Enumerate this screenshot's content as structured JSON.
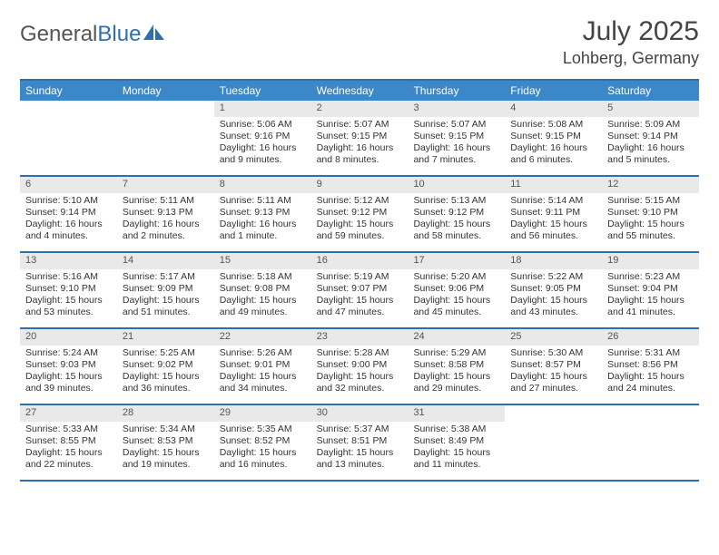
{
  "logo": {
    "text1": "General",
    "text2": "Blue"
  },
  "title": "July 2025",
  "location": "Lohberg, Germany",
  "colors": {
    "header_bg": "#3b87c8",
    "rule": "#2f6fab",
    "daynum_bg": "#e9e9e9",
    "text": "#333333",
    "title_text": "#444444"
  },
  "day_headers": [
    "Sunday",
    "Monday",
    "Tuesday",
    "Wednesday",
    "Thursday",
    "Friday",
    "Saturday"
  ],
  "weeks": [
    [
      {
        "n": "",
        "lines": [
          "",
          "",
          "",
          ""
        ]
      },
      {
        "n": "",
        "lines": [
          "",
          "",
          "",
          ""
        ]
      },
      {
        "n": "1",
        "lines": [
          "Sunrise: 5:06 AM",
          "Sunset: 9:16 PM",
          "Daylight: 16 hours",
          "and 9 minutes."
        ]
      },
      {
        "n": "2",
        "lines": [
          "Sunrise: 5:07 AM",
          "Sunset: 9:15 PM",
          "Daylight: 16 hours",
          "and 8 minutes."
        ]
      },
      {
        "n": "3",
        "lines": [
          "Sunrise: 5:07 AM",
          "Sunset: 9:15 PM",
          "Daylight: 16 hours",
          "and 7 minutes."
        ]
      },
      {
        "n": "4",
        "lines": [
          "Sunrise: 5:08 AM",
          "Sunset: 9:15 PM",
          "Daylight: 16 hours",
          "and 6 minutes."
        ]
      },
      {
        "n": "5",
        "lines": [
          "Sunrise: 5:09 AM",
          "Sunset: 9:14 PM",
          "Daylight: 16 hours",
          "and 5 minutes."
        ]
      }
    ],
    [
      {
        "n": "6",
        "lines": [
          "Sunrise: 5:10 AM",
          "Sunset: 9:14 PM",
          "Daylight: 16 hours",
          "and 4 minutes."
        ]
      },
      {
        "n": "7",
        "lines": [
          "Sunrise: 5:11 AM",
          "Sunset: 9:13 PM",
          "Daylight: 16 hours",
          "and 2 minutes."
        ]
      },
      {
        "n": "8",
        "lines": [
          "Sunrise: 5:11 AM",
          "Sunset: 9:13 PM",
          "Daylight: 16 hours",
          "and 1 minute."
        ]
      },
      {
        "n": "9",
        "lines": [
          "Sunrise: 5:12 AM",
          "Sunset: 9:12 PM",
          "Daylight: 15 hours",
          "and 59 minutes."
        ]
      },
      {
        "n": "10",
        "lines": [
          "Sunrise: 5:13 AM",
          "Sunset: 9:12 PM",
          "Daylight: 15 hours",
          "and 58 minutes."
        ]
      },
      {
        "n": "11",
        "lines": [
          "Sunrise: 5:14 AM",
          "Sunset: 9:11 PM",
          "Daylight: 15 hours",
          "and 56 minutes."
        ]
      },
      {
        "n": "12",
        "lines": [
          "Sunrise: 5:15 AM",
          "Sunset: 9:10 PM",
          "Daylight: 15 hours",
          "and 55 minutes."
        ]
      }
    ],
    [
      {
        "n": "13",
        "lines": [
          "Sunrise: 5:16 AM",
          "Sunset: 9:10 PM",
          "Daylight: 15 hours",
          "and 53 minutes."
        ]
      },
      {
        "n": "14",
        "lines": [
          "Sunrise: 5:17 AM",
          "Sunset: 9:09 PM",
          "Daylight: 15 hours",
          "and 51 minutes."
        ]
      },
      {
        "n": "15",
        "lines": [
          "Sunrise: 5:18 AM",
          "Sunset: 9:08 PM",
          "Daylight: 15 hours",
          "and 49 minutes."
        ]
      },
      {
        "n": "16",
        "lines": [
          "Sunrise: 5:19 AM",
          "Sunset: 9:07 PM",
          "Daylight: 15 hours",
          "and 47 minutes."
        ]
      },
      {
        "n": "17",
        "lines": [
          "Sunrise: 5:20 AM",
          "Sunset: 9:06 PM",
          "Daylight: 15 hours",
          "and 45 minutes."
        ]
      },
      {
        "n": "18",
        "lines": [
          "Sunrise: 5:22 AM",
          "Sunset: 9:05 PM",
          "Daylight: 15 hours",
          "and 43 minutes."
        ]
      },
      {
        "n": "19",
        "lines": [
          "Sunrise: 5:23 AM",
          "Sunset: 9:04 PM",
          "Daylight: 15 hours",
          "and 41 minutes."
        ]
      }
    ],
    [
      {
        "n": "20",
        "lines": [
          "Sunrise: 5:24 AM",
          "Sunset: 9:03 PM",
          "Daylight: 15 hours",
          "and 39 minutes."
        ]
      },
      {
        "n": "21",
        "lines": [
          "Sunrise: 5:25 AM",
          "Sunset: 9:02 PM",
          "Daylight: 15 hours",
          "and 36 minutes."
        ]
      },
      {
        "n": "22",
        "lines": [
          "Sunrise: 5:26 AM",
          "Sunset: 9:01 PM",
          "Daylight: 15 hours",
          "and 34 minutes."
        ]
      },
      {
        "n": "23",
        "lines": [
          "Sunrise: 5:28 AM",
          "Sunset: 9:00 PM",
          "Daylight: 15 hours",
          "and 32 minutes."
        ]
      },
      {
        "n": "24",
        "lines": [
          "Sunrise: 5:29 AM",
          "Sunset: 8:58 PM",
          "Daylight: 15 hours",
          "and 29 minutes."
        ]
      },
      {
        "n": "25",
        "lines": [
          "Sunrise: 5:30 AM",
          "Sunset: 8:57 PM",
          "Daylight: 15 hours",
          "and 27 minutes."
        ]
      },
      {
        "n": "26",
        "lines": [
          "Sunrise: 5:31 AM",
          "Sunset: 8:56 PM",
          "Daylight: 15 hours",
          "and 24 minutes."
        ]
      }
    ],
    [
      {
        "n": "27",
        "lines": [
          "Sunrise: 5:33 AM",
          "Sunset: 8:55 PM",
          "Daylight: 15 hours",
          "and 22 minutes."
        ]
      },
      {
        "n": "28",
        "lines": [
          "Sunrise: 5:34 AM",
          "Sunset: 8:53 PM",
          "Daylight: 15 hours",
          "and 19 minutes."
        ]
      },
      {
        "n": "29",
        "lines": [
          "Sunrise: 5:35 AM",
          "Sunset: 8:52 PM",
          "Daylight: 15 hours",
          "and 16 minutes."
        ]
      },
      {
        "n": "30",
        "lines": [
          "Sunrise: 5:37 AM",
          "Sunset: 8:51 PM",
          "Daylight: 15 hours",
          "and 13 minutes."
        ]
      },
      {
        "n": "31",
        "lines": [
          "Sunrise: 5:38 AM",
          "Sunset: 8:49 PM",
          "Daylight: 15 hours",
          "and 11 minutes."
        ]
      },
      {
        "n": "",
        "lines": [
          "",
          "",
          "",
          ""
        ]
      },
      {
        "n": "",
        "lines": [
          "",
          "",
          "",
          ""
        ]
      }
    ]
  ]
}
